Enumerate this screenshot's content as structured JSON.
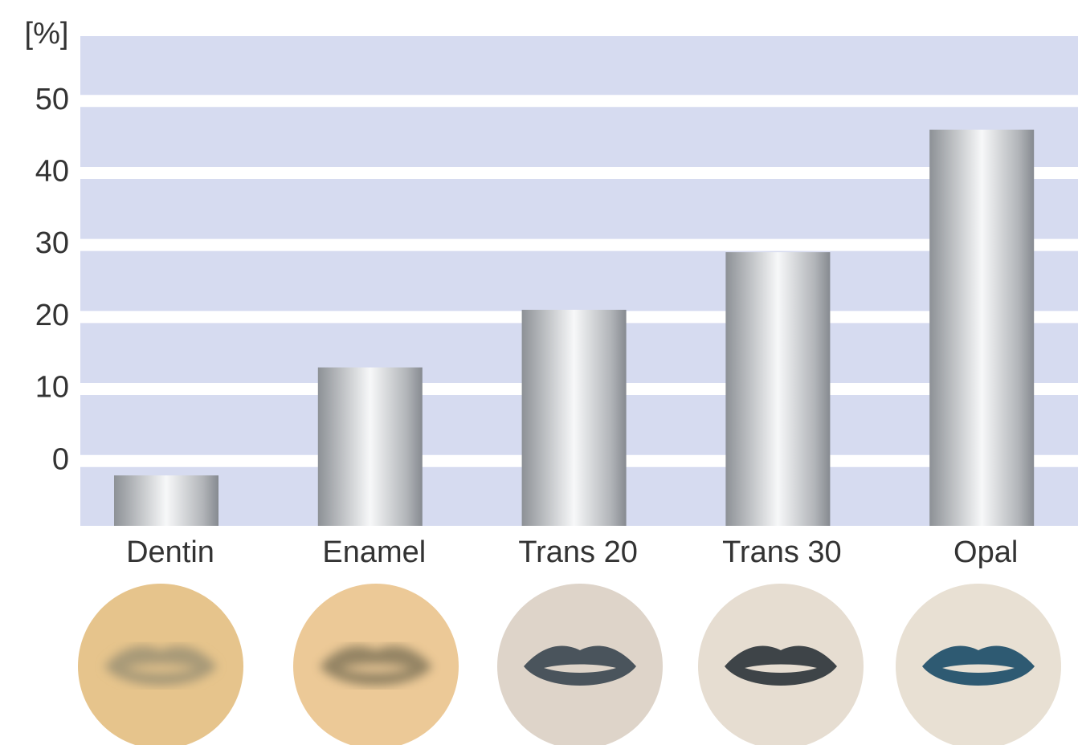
{
  "chart_data": {
    "type": "bar",
    "y_label": "[%]",
    "categories": [
      "Dentin",
      "Enamel",
      "Trans 20",
      "Trans 30",
      "Opal"
    ],
    "values": [
      -2,
      13,
      21,
      29,
      46
    ],
    "ylim": [
      -9,
      59
    ],
    "yticks": [
      0,
      10,
      20,
      30,
      40,
      50
    ],
    "grid": true
  }
}
